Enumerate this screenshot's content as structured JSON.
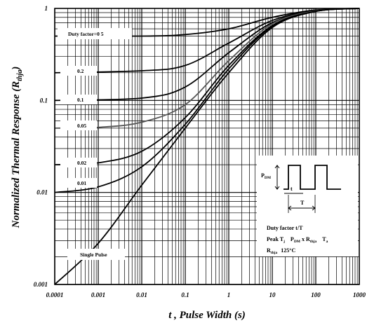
{
  "chart_data": {
    "type": "line",
    "title": "",
    "xlabel": "t , Pulse Width (s)",
    "ylabel": "Normalized Thermal Response (R",
    "ylabel_sub": "thja",
    "ylabel_end": ")",
    "x_scale": "log",
    "y_scale": "log",
    "xlim": [
      0.0001,
      1000
    ],
    "ylim": [
      0.001,
      1
    ],
    "grid": true,
    "x_ticks": [
      "0.0001",
      "0.001",
      "0.01",
      "0.1",
      "1",
      "10",
      "100",
      "1000"
    ],
    "y_ticks": [
      "0.001",
      "0.01",
      "0.1",
      "1"
    ],
    "series": [
      {
        "name": "Duty factor=0 5",
        "x": [
          0.0001,
          0.01,
          0.1,
          1,
          10,
          100,
          1000
        ],
        "y": [
          0.5,
          0.5,
          0.52,
          0.6,
          0.8,
          0.96,
          1.0
        ]
      },
      {
        "name": "0.2",
        "x": [
          0.0001,
          0.01,
          0.1,
          1,
          10,
          100,
          1000
        ],
        "y": [
          0.2,
          0.21,
          0.24,
          0.42,
          0.74,
          0.95,
          1.0
        ]
      },
      {
        "name": "0.1",
        "x": [
          0.0001,
          0.01,
          0.1,
          1,
          10,
          100,
          1000
        ],
        "y": [
          0.1,
          0.106,
          0.14,
          0.33,
          0.7,
          0.94,
          1.0
        ]
      },
      {
        "name": "0.05",
        "x": [
          0.0001,
          0.001,
          0.01,
          0.1,
          1,
          10,
          100,
          1000
        ],
        "y": [
          0.05,
          0.051,
          0.058,
          0.09,
          0.27,
          0.68,
          0.94,
          1.0
        ]
      },
      {
        "name": "0.02",
        "x": [
          0.0001,
          0.001,
          0.01,
          0.1,
          1,
          10,
          100,
          1000
        ],
        "y": [
          0.02,
          0.021,
          0.028,
          0.065,
          0.24,
          0.65,
          0.93,
          1.0
        ]
      },
      {
        "name": "0.01",
        "x": [
          0.0001,
          0.001,
          0.01,
          0.1,
          1,
          10,
          100,
          1000
        ],
        "y": [
          0.01,
          0.0115,
          0.019,
          0.055,
          0.22,
          0.64,
          0.93,
          1.0
        ]
      },
      {
        "name": "Single Pulse",
        "x": [
          0.0001,
          0.001,
          0.01,
          0.1,
          1,
          10,
          100,
          1000
        ],
        "y": [
          0.001,
          0.0028,
          0.012,
          0.05,
          0.2,
          0.62,
          0.93,
          1.0
        ]
      }
    ]
  },
  "annotation": {
    "pdm": "P",
    "pdm_sub": "DM",
    "t_small": "t",
    "t_big": "T",
    "duty_factor": "Duty factor   t/T",
    "peak_a": "Peak T",
    "peak_a_sub": "j",
    "peak_b": "P",
    "peak_b_sub": "DM",
    "peak_c": " x R",
    "peak_c_sub": "thja",
    "peak_d": "T",
    "peak_d_sub": "a",
    "rthja": "R",
    "rthja_sub": "thja",
    "rthja_val": "125°C"
  }
}
